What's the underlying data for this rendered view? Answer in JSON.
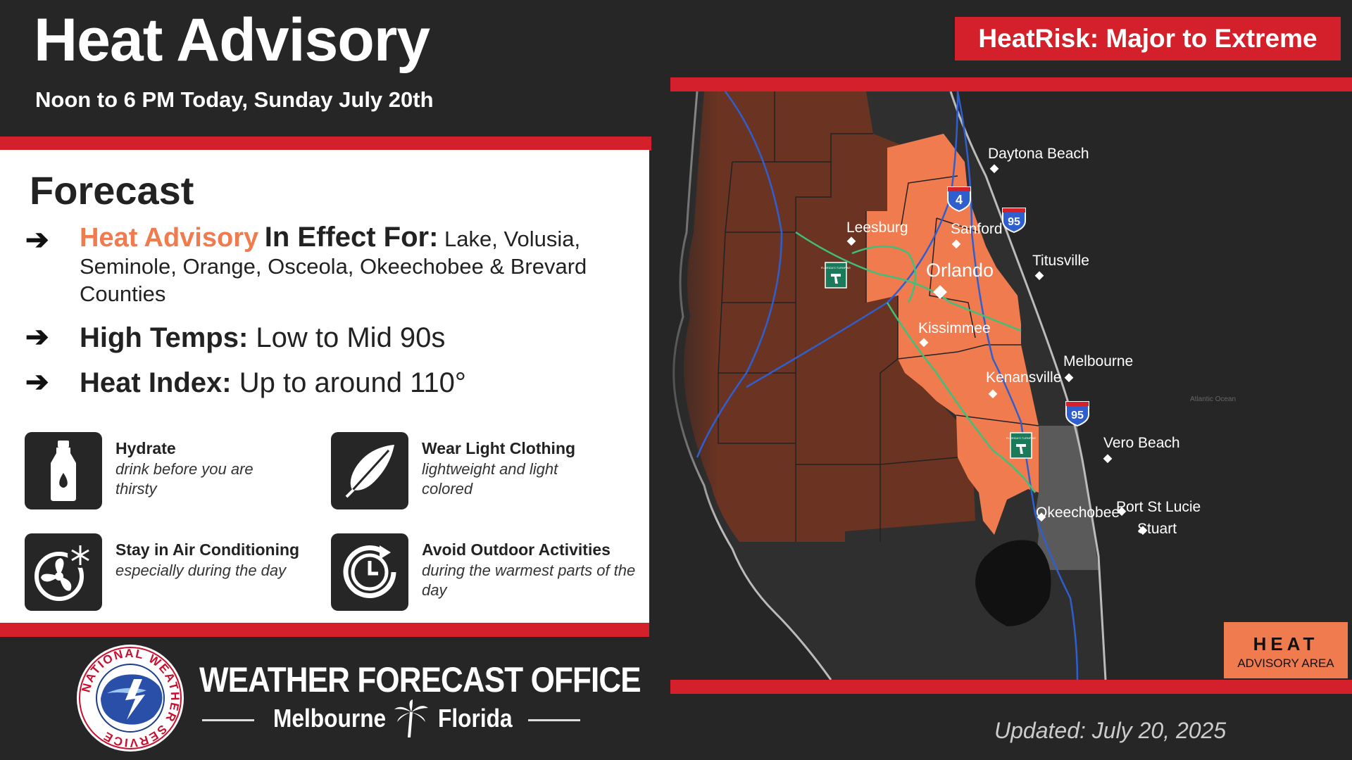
{
  "header": {
    "title": "Heat Advisory",
    "subtitle": "Noon to 6 PM Today, Sunday July 20th",
    "risk_badge": "HeatRisk: Major to Extreme"
  },
  "forecast": {
    "heading": "Forecast",
    "bullets": {
      "advisory_highlight": "Heat Advisory",
      "advisory_label": "In Effect For:",
      "advisory_value": "Lake, Volusia, Seminole, Orange, Osceola, Okeechobee & Brevard Counties",
      "temps_label": "High Temps:",
      "temps_value": "Low to Mid 90s",
      "index_label": "Heat Index:",
      "index_value": "Up to around 110°"
    },
    "arrow_glyph": "➔"
  },
  "tips": {
    "hydrate_title": "Hydrate",
    "hydrate_desc": "drink before you are thirsty",
    "clothing_title": "Wear Light Clothing",
    "clothing_desc": "lightweight and light colored",
    "ac_title": "Stay in Air Conditioning",
    "ac_desc": "especially during the day",
    "outdoor_title": "Avoid Outdoor Activities",
    "outdoor_desc": "during the warmest parts of the day"
  },
  "tip_icons": [
    "water-bottle-icon",
    "feather-icon",
    "fan-snowflake-icon",
    "clock-icon"
  ],
  "footer": {
    "office_title": "WEATHER FORECAST OFFICE",
    "office_city": "Melbourne",
    "office_state": "Florida",
    "updated": "Updated: July 20, 2025",
    "logo_ring_text": "NATIONAL WEATHER SERVICE"
  },
  "map": {
    "cities": {
      "daytona": "Daytona Beach",
      "leesburg": "Leesburg",
      "sanford": "Sanford",
      "orlando": "Orlando",
      "titusville": "Titusville",
      "kissimmee": "Kissimmee",
      "melbourne": "Melbourne",
      "kenansville": "Kenansville",
      "vero": "Vero Beach",
      "okeechobee": "Okeechobee",
      "psl": "Port St Lucie",
      "stuart": "Stuart"
    },
    "shields": {
      "i4": "4",
      "i95a": "95",
      "i95b": "95",
      "turnpike_text": "FLORIDA'S TURNPIKE"
    },
    "ocean_label": "Atlantic Ocean",
    "legend": {
      "line1": "HEAT",
      "line2": "ADVISORY AREA"
    }
  },
  "colors": {
    "advisory_orange": "#f07b4f",
    "accent_red": "#d3202a",
    "county_brown": "#6b3322",
    "background": "#262626"
  }
}
